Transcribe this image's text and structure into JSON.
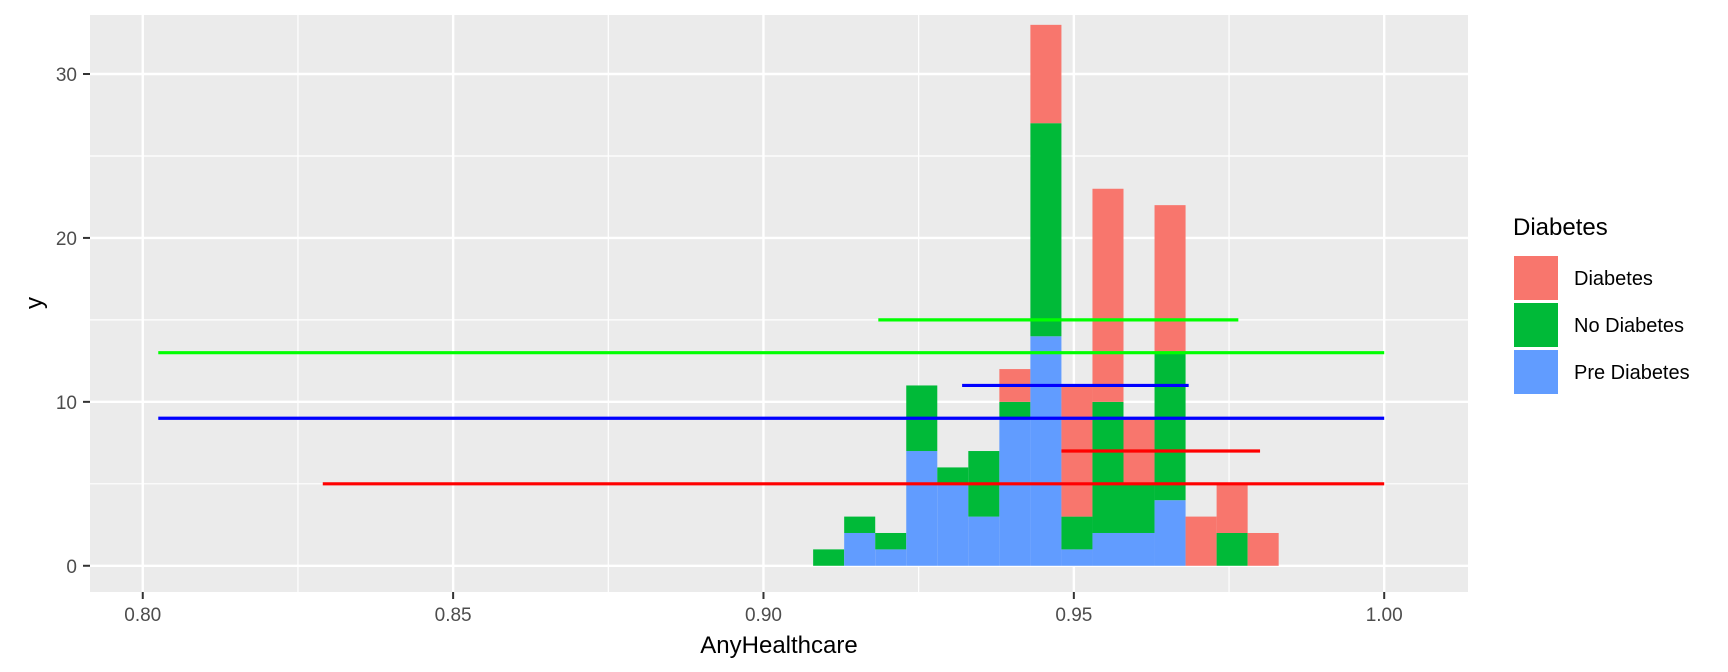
{
  "chart_data": {
    "type": "bar",
    "stacked": true,
    "xlabel": "AnyHealthcare",
    "ylabel": "y",
    "xlim": [
      0.7915,
      1.0135
    ],
    "ylim": [
      -1.6,
      33.6
    ],
    "x_ticks": [
      0.8,
      0.85,
      0.9,
      0.95,
      1.0
    ],
    "x_tick_labels": [
      "0.80",
      "0.85",
      "0.90",
      "0.95",
      "1.00"
    ],
    "y_ticks": [
      0,
      10,
      20,
      30
    ],
    "y_tick_labels": [
      "0",
      "10",
      "20",
      "30"
    ],
    "grid": true,
    "background": "#ebebeb",
    "bin_width": 0.005,
    "bin_centers": [
      0.9105,
      0.9155,
      0.9205,
      0.9255,
      0.9305,
      0.9355,
      0.9405,
      0.9455,
      0.9505,
      0.9555,
      0.9605,
      0.9655,
      0.9705,
      0.9755,
      0.9805
    ],
    "series": [
      {
        "name": "Pre Diabetes",
        "color": "#619cff",
        "values": [
          0,
          2,
          1,
          7,
          5,
          3,
          9,
          14,
          1,
          2,
          2,
          4,
          0,
          0,
          0
        ]
      },
      {
        "name": "No Diabetes",
        "color": "#00ba38",
        "values": [
          1,
          1,
          1,
          4,
          1,
          4,
          1,
          13,
          2,
          8,
          3,
          9,
          0,
          2,
          0
        ]
      },
      {
        "name": "Diabetes",
        "color": "#f8766d",
        "values": [
          0,
          0,
          0,
          0,
          0,
          0,
          2,
          6,
          8,
          13,
          4,
          9,
          3,
          3,
          2
        ]
      }
    ],
    "segments": [
      {
        "color": "#00ff00",
        "x": [
          0.8025,
          1.0
        ],
        "y": 13
      },
      {
        "color": "#00ff00",
        "x": [
          0.9185,
          0.9765
        ],
        "y": 15
      },
      {
        "color": "#0000ff",
        "x": [
          0.8025,
          1.0
        ],
        "y": 9
      },
      {
        "color": "#0000ff",
        "x": [
          0.932,
          0.9685
        ],
        "y": 11
      },
      {
        "color": "#ff0000",
        "x": [
          0.829,
          1.0
        ],
        "y": 5
      },
      {
        "color": "#ff0000",
        "x": [
          0.948,
          0.98
        ],
        "y": 7
      }
    ],
    "legend": {
      "title": "Diabetes",
      "position": "right",
      "entries": [
        {
          "label": "Diabetes",
          "color": "#f8766d"
        },
        {
          "label": "No Diabetes",
          "color": "#00ba38"
        },
        {
          "label": "Pre Diabetes",
          "color": "#619cff"
        }
      ]
    }
  }
}
